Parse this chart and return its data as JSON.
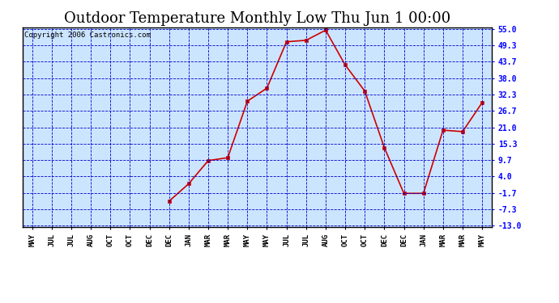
{
  "title": "Outdoor Temperature Monthly Low Thu Jun 1 00:00",
  "copyright": "Copyright 2006 Castronics.com",
  "x_labels": [
    "MAY",
    "JUL",
    "JUL",
    "AUG",
    "OCT",
    "OCT",
    "DEC",
    "DEC",
    "JAN",
    "MAR",
    "MAR",
    "MAY",
    "MAY",
    "JUL",
    "JUL",
    "AUG",
    "OCT",
    "OCT",
    "DEC",
    "DEC",
    "JAN",
    "MAR",
    "MAR",
    "MAY"
  ],
  "y_values": [
    null,
    null,
    null,
    null,
    null,
    null,
    null,
    -4.5,
    1.5,
    9.5,
    10.5,
    30.0,
    34.5,
    50.5,
    51.0,
    54.5,
    42.5,
    33.5,
    14.0,
    -1.8,
    -1.8,
    20.0,
    19.5,
    29.5
  ],
  "y_min": -13.0,
  "y_max": 55.0,
  "y_ticks": [
    -13.0,
    -7.3,
    -1.7,
    4.0,
    9.7,
    15.3,
    21.0,
    26.7,
    32.3,
    38.0,
    43.7,
    49.3,
    55.0
  ],
  "line_color": "#cc0000",
  "marker_color": "#cc0000",
  "bg_color": "#ffffff",
  "plot_bg": "#cce5ff",
  "grid_color": "#0000cc",
  "border_color": "#000000",
  "title_fontsize": 13,
  "copyright_fontsize": 6.5
}
